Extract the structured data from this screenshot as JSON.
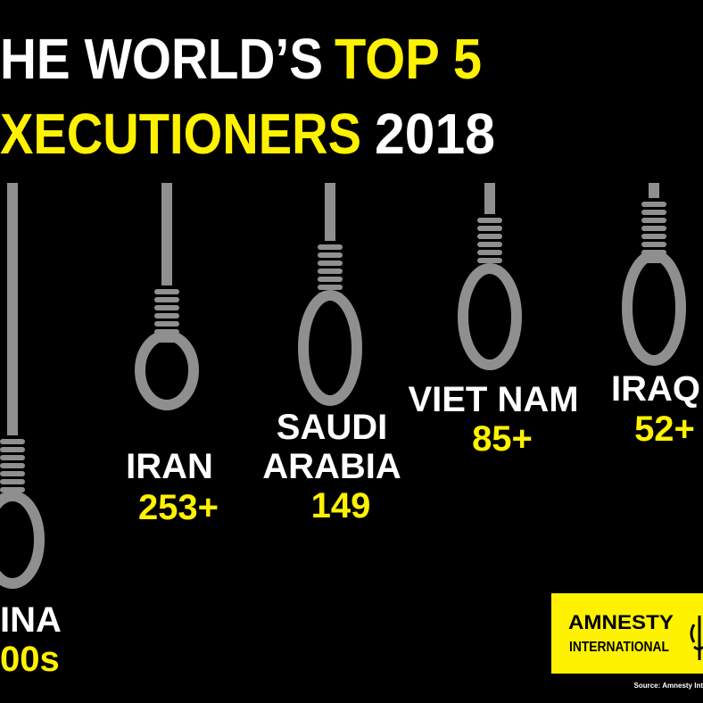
{
  "title": {
    "line1": {
      "white": "HE WORLD’S",
      "yellow": "TOP 5"
    },
    "line2": {
      "yellow": "XECUTIONERS",
      "white": "2018"
    }
  },
  "countries": [
    {
      "name": [
        "INA"
      ],
      "value": "00s"
    },
    {
      "name": [
        "IRAN"
      ],
      "value": "253+"
    },
    {
      "name": [
        "SAUDI",
        "ARABIA"
      ],
      "value": "149"
    },
    {
      "name": [
        "VIET NAM"
      ],
      "value": "85+"
    },
    {
      "name": [
        "IRAQ"
      ],
      "value": "52+"
    }
  ],
  "logo": {
    "line1": "AMNESTY",
    "line2": "INTERNATIONAL"
  },
  "source": "Source: Amnesty Int"
}
